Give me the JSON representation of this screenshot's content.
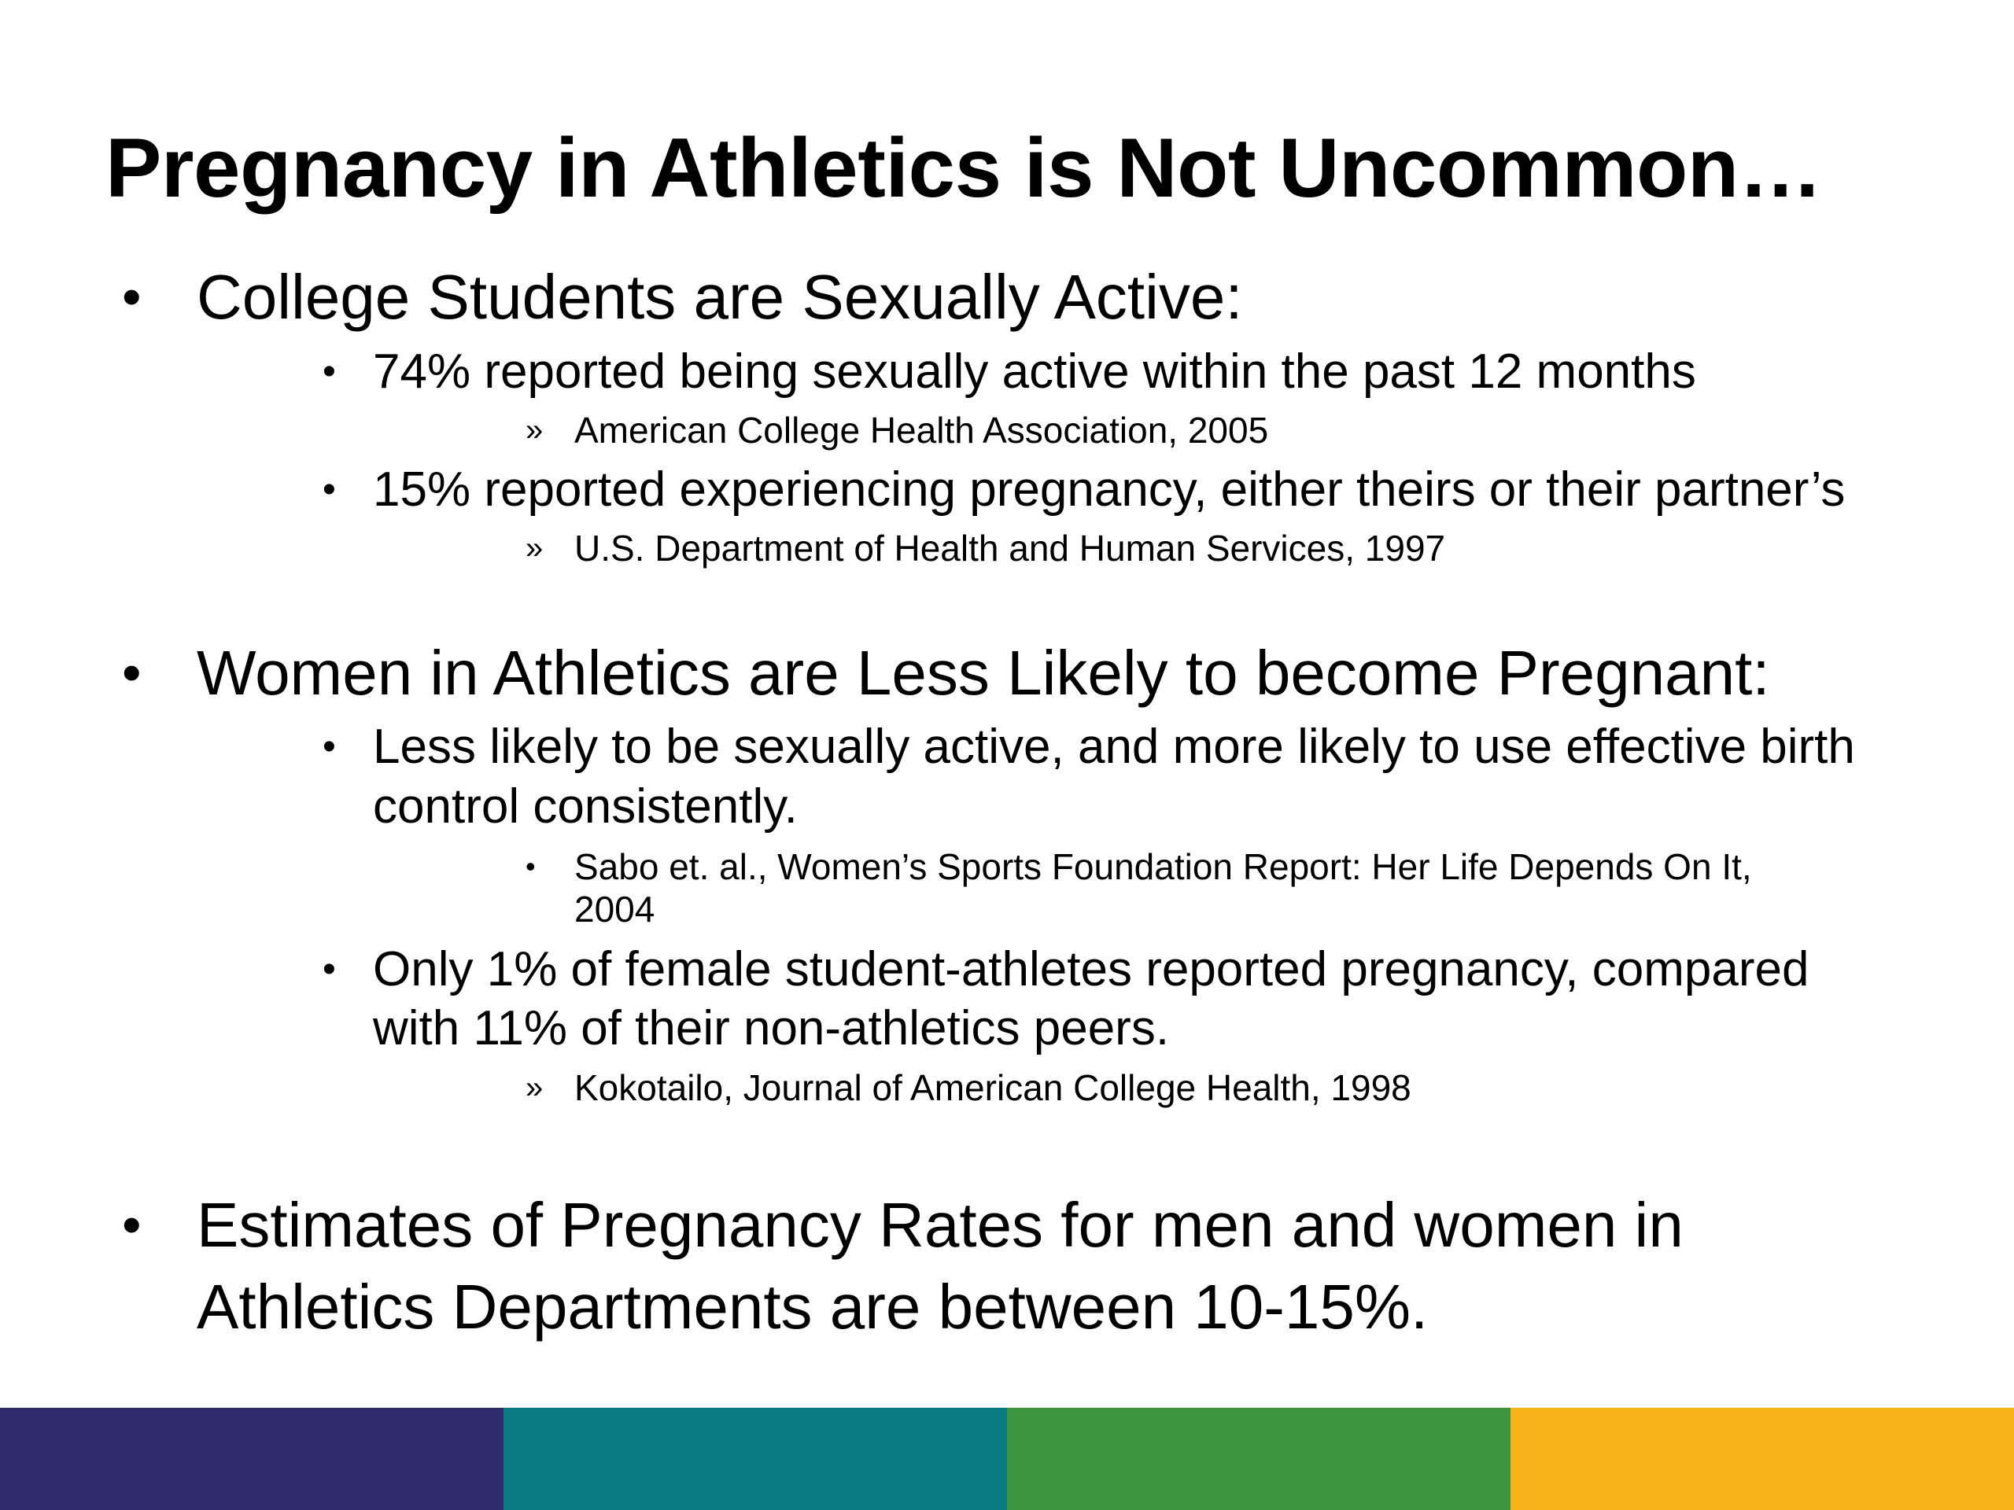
{
  "slide": {
    "title": "Pregnancy in Athletics is Not Uncommon…",
    "bullet_symbol": "•",
    "raquo_symbol": "»",
    "section1": {
      "heading": "College Students are Sexually Active:",
      "item1": {
        "text": "74% reported being sexually active within the past 12 months",
        "source": "American College Health Association, 2005"
      },
      "item2": {
        "text": "15% reported experiencing pregnancy, either theirs or their partner’s",
        "source": "U.S. Department of Health and Human Services, 1997"
      }
    },
    "section2": {
      "heading": "Women in Athletics are Less Likely to become Pregnant:",
      "item1": {
        "line1": "Less likely to be sexually active, and more likely to use effective birth",
        "line2": "control consistently.",
        "source_line1": "Sabo et. al., Women’s Sports Foundation Report: Her Life Depends On It,",
        "source_line2": "2004"
      },
      "item2": {
        "line1": "Only 1% of female student-athletes reported pregnancy, compared",
        "line2": "with 11% of their non-athletics peers.",
        "source": "Kokotailo, Journal of American College Health, 1998"
      }
    },
    "section3": {
      "line1": "Estimates of Pregnancy Rates for men and women in",
      "line2": "Athletics Departments are between 10-15%."
    }
  },
  "footer": {
    "colors": [
      "#2e2a6b",
      "#0a7a82",
      "#3d9540",
      "#f6b41a"
    ]
  }
}
